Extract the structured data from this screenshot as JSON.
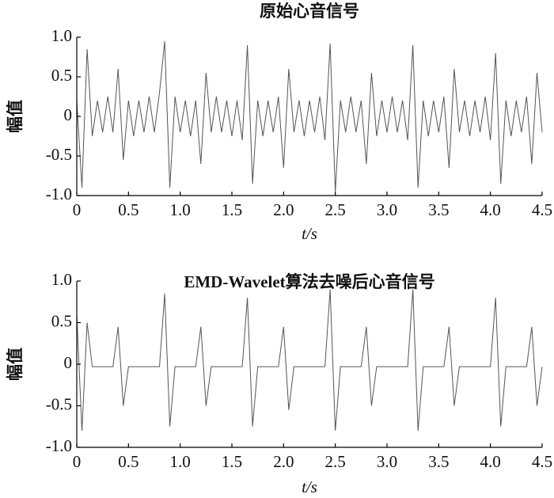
{
  "chart_data": [
    {
      "type": "line",
      "title": "原始心音信号",
      "xlabel": "t/s",
      "ylabel": "幅值",
      "xlim": [
        0,
        4.5
      ],
      "ylim": [
        -1,
        1
      ],
      "xticks": [
        0,
        0.5,
        {
          "value": 1,
          "label": "1.0"
        },
        1.5,
        {
          "value": 2,
          "label": "2.0"
        },
        2.5,
        {
          "value": 3,
          "label": "3.0"
        },
        3.5,
        {
          "value": 4,
          "label": "4.0"
        },
        4.5
      ],
      "yticks": [
        {
          "value": -1,
          "label": "-1.0"
        },
        -0.5,
        0,
        0.5,
        {
          "value": 1,
          "label": "1.0"
        }
      ],
      "x": [
        0,
        0.05,
        0.1,
        0.15,
        0.2,
        0.25,
        0.3,
        0.35,
        0.4,
        0.45,
        0.5,
        0.55,
        0.6,
        0.65,
        0.7,
        0.75,
        0.8,
        0.85,
        0.9,
        0.95,
        1,
        1.05,
        1.1,
        1.15,
        1.2,
        1.25,
        1.3,
        1.35,
        1.4,
        1.45,
        1.5,
        1.55,
        1.6,
        1.65,
        1.7,
        1.75,
        1.8,
        1.85,
        1.9,
        1.95,
        2,
        2.05,
        2.1,
        2.15,
        2.2,
        2.25,
        2.3,
        2.35,
        2.4,
        2.45,
        2.5,
        2.55,
        2.6,
        2.65,
        2.7,
        2.75,
        2.8,
        2.85,
        2.9,
        2.95,
        3,
        3.05,
        3.1,
        3.15,
        3.2,
        3.25,
        3.3,
        3.35,
        3.4,
        3.45,
        3.5,
        3.55,
        3.6,
        3.65,
        3.7,
        3.75,
        3.8,
        3.85,
        3.9,
        3.95,
        4,
        4.05,
        4.1,
        4.15,
        4.2,
        4.25,
        4.3,
        4.35,
        4.4,
        4.45,
        4.5
      ],
      "series": [
        {
          "color": "#555555",
          "values": [
            0.2,
            -0.9,
            0.85,
            -0.25,
            0.2,
            -0.2,
            0.25,
            -0.2,
            0.6,
            -0.55,
            0.2,
            -0.25,
            0.2,
            -0.2,
            0.25,
            -0.2,
            0.3,
            0.95,
            -0.9,
            0.25,
            -0.2,
            0.2,
            -0.25,
            0.2,
            -0.6,
            0.55,
            -0.2,
            0.25,
            -0.2,
            0.2,
            -0.25,
            0.2,
            -0.3,
            0.9,
            -0.85,
            0.2,
            -0.25,
            0.2,
            -0.2,
            0.25,
            -0.65,
            0.6,
            -0.2,
            0.2,
            -0.25,
            0.2,
            -0.2,
            0.25,
            -0.3,
            0.92,
            -0.95,
            0.2,
            -0.2,
            0.25,
            -0.2,
            0.2,
            -0.6,
            0.55,
            -0.25,
            0.2,
            -0.2,
            0.25,
            -0.2,
            0.2,
            -0.3,
            0.9,
            -0.9,
            0.2,
            -0.25,
            0.2,
            -0.2,
            0.25,
            -0.65,
            0.6,
            -0.2,
            0.2,
            -0.25,
            0.2,
            -0.2,
            0.25,
            -0.3,
            0.8,
            -0.85,
            0.2,
            -0.25,
            0.2,
            -0.2,
            0.25,
            -0.6,
            0.55,
            -0.2
          ]
        }
      ]
    },
    {
      "type": "line",
      "title": "EMD-Wavelet算法去噪后心音信号",
      "xlabel": "t/s",
      "ylabel": "幅值",
      "xlim": [
        0,
        4.5
      ],
      "ylim": [
        -1,
        1
      ],
      "xticks": [
        0,
        0.5,
        {
          "value": 1,
          "label": "1.0"
        },
        1.5,
        {
          "value": 2,
          "label": "2.0"
        },
        2.5,
        {
          "value": 3,
          "label": "3.0"
        },
        3.5,
        {
          "value": 4,
          "label": "4.0"
        },
        4.5
      ],
      "yticks": [
        {
          "value": -1,
          "label": "-1.0"
        },
        -0.5,
        0,
        0.5,
        {
          "value": 1,
          "label": "1.0"
        }
      ],
      "x": [
        0,
        0.05,
        0.1,
        0.15,
        0.2,
        0.25,
        0.3,
        0.35,
        0.4,
        0.45,
        0.5,
        0.55,
        0.6,
        0.65,
        0.7,
        0.75,
        0.8,
        0.85,
        0.9,
        0.95,
        1,
        1.05,
        1.1,
        1.15,
        1.2,
        1.25,
        1.3,
        1.35,
        1.4,
        1.45,
        1.5,
        1.55,
        1.6,
        1.65,
        1.7,
        1.75,
        1.8,
        1.85,
        1.9,
        1.95,
        2,
        2.05,
        2.1,
        2.15,
        2.2,
        2.25,
        2.3,
        2.35,
        2.4,
        2.45,
        2.5,
        2.55,
        2.6,
        2.65,
        2.7,
        2.75,
        2.8,
        2.85,
        2.9,
        2.95,
        3,
        3.05,
        3.1,
        3.15,
        3.2,
        3.25,
        3.3,
        3.35,
        3.4,
        3.45,
        3.5,
        3.55,
        3.6,
        3.65,
        3.7,
        3.75,
        3.8,
        3.85,
        3.9,
        3.95,
        4,
        4.05,
        4.1,
        4.15,
        4.2,
        4.25,
        4.3,
        4.35,
        4.4,
        4.45,
        4.5
      ],
      "series": [
        {
          "color": "#555555",
          "values": [
            0.6,
            -0.8,
            0.5,
            -0.03,
            -0.03,
            -0.03,
            -0.03,
            -0.03,
            0.45,
            -0.5,
            -0.03,
            -0.03,
            -0.03,
            -0.03,
            -0.03,
            -0.03,
            -0.03,
            0.85,
            -0.75,
            -0.03,
            -0.03,
            -0.03,
            -0.03,
            -0.03,
            0.45,
            -0.5,
            -0.03,
            -0.03,
            -0.03,
            -0.03,
            -0.03,
            -0.03,
            -0.03,
            0.8,
            -0.75,
            -0.03,
            -0.03,
            -0.03,
            -0.03,
            -0.03,
            0.45,
            -0.55,
            -0.03,
            -0.03,
            -0.03,
            -0.03,
            -0.03,
            -0.03,
            -0.03,
            0.9,
            -0.8,
            -0.03,
            -0.03,
            -0.03,
            -0.03,
            -0.03,
            0.45,
            -0.5,
            -0.03,
            -0.03,
            -0.03,
            -0.03,
            -0.03,
            -0.03,
            -0.03,
            0.9,
            -0.8,
            -0.03,
            -0.03,
            -0.03,
            -0.03,
            -0.03,
            0.45,
            -0.5,
            -0.03,
            -0.03,
            -0.03,
            -0.03,
            -0.03,
            -0.03,
            -0.03,
            0.8,
            -0.75,
            -0.03,
            -0.03,
            -0.03,
            -0.03,
            -0.03,
            0.45,
            -0.5,
            -0.03
          ]
        }
      ]
    }
  ]
}
